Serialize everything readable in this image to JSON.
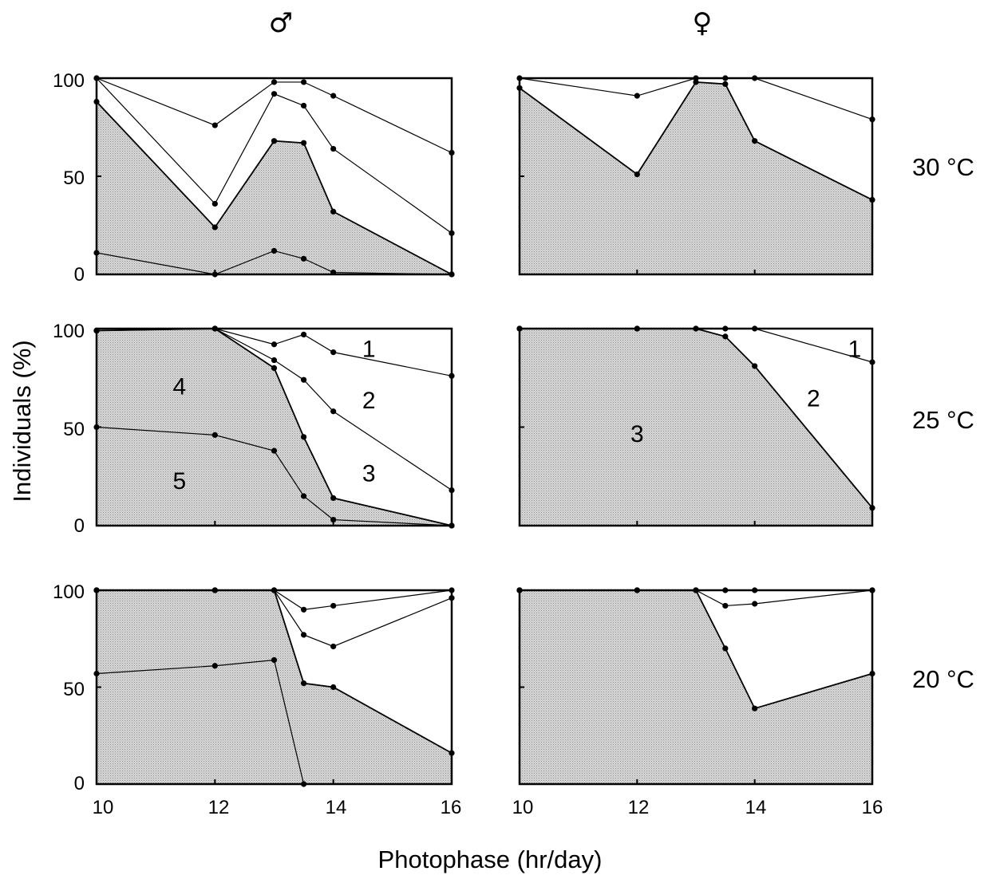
{
  "figure": {
    "ylabel": "Individuals (%)",
    "xlabel": "Photophase (hr/day)",
    "columns": [
      "♂",
      "♀"
    ],
    "rows": [
      "30 °C",
      "25 °C",
      "20 °C"
    ],
    "x_ticks": [
      "10",
      "12",
      "14",
      "16"
    ],
    "y_ticks": [
      "100",
      "50",
      "0"
    ],
    "fill_color": "#d4d4d4"
  },
  "chart_data": [
    {
      "type": "area",
      "column": "♂",
      "row": "30 °C",
      "xlim": [
        10,
        16
      ],
      "ylim": [
        0,
        100
      ],
      "lines": [
        {
          "x": [
            10,
            12,
            13,
            13.5,
            14,
            16
          ],
          "y": [
            100,
            76,
            98,
            98,
            91,
            62
          ]
        },
        {
          "x": [
            10,
            12,
            13,
            13.5,
            14,
            16
          ],
          "y": [
            100,
            36,
            92,
            86,
            64,
            21
          ]
        },
        {
          "x": [
            10,
            12,
            13,
            13.5,
            14,
            16
          ],
          "y": [
            88,
            24,
            68,
            67,
            32,
            0
          ],
          "shade": true
        },
        {
          "x": [
            10,
            12,
            13,
            13.5,
            14,
            16
          ],
          "y": [
            11,
            0,
            12,
            8,
            1,
            0
          ]
        }
      ],
      "labels": []
    },
    {
      "type": "area",
      "column": "♀",
      "row": "30 °C",
      "xlim": [
        10,
        16
      ],
      "ylim": [
        0,
        100
      ],
      "lines": [
        {
          "x": [
            10,
            12,
            13,
            13.5,
            14,
            16
          ],
          "y": [
            100,
            91,
            100,
            100,
            100,
            79
          ]
        },
        {
          "x": [
            10,
            12,
            13,
            13.5,
            14,
            16
          ],
          "y": [
            95,
            51,
            98,
            97,
            68,
            38
          ],
          "shade": true
        }
      ],
      "labels": []
    },
    {
      "type": "area",
      "column": "♂",
      "row": "25 °C",
      "xlim": [
        10,
        16
      ],
      "ylim": [
        0,
        100
      ],
      "lines": [
        {
          "x": [
            10,
            12,
            13,
            13.5,
            14,
            16
          ],
          "y": [
            99,
            100,
            92,
            97,
            88,
            76
          ]
        },
        {
          "x": [
            10,
            12,
            13,
            13.5,
            14,
            16
          ],
          "y": [
            99,
            100,
            84,
            74,
            58,
            18
          ]
        },
        {
          "x": [
            10,
            12,
            13,
            13.5,
            14,
            16
          ],
          "y": [
            99,
            100,
            80,
            45,
            14,
            0
          ],
          "shade": true
        },
        {
          "x": [
            10,
            12,
            13,
            13.5,
            14,
            16
          ],
          "y": [
            50,
            46,
            38,
            15,
            3,
            0
          ]
        }
      ],
      "labels": [
        {
          "text": "1",
          "x": 14.6,
          "y": 90
        },
        {
          "text": "2",
          "x": 14.6,
          "y": 64
        },
        {
          "text": "3",
          "x": 14.6,
          "y": 27
        },
        {
          "text": "4",
          "x": 11.4,
          "y": 71
        },
        {
          "text": "5",
          "x": 11.4,
          "y": 23
        }
      ]
    },
    {
      "type": "area",
      "column": "♀",
      "row": "25 °C",
      "xlim": [
        10,
        16
      ],
      "ylim": [
        0,
        100
      ],
      "lines": [
        {
          "x": [
            10,
            12,
            13,
            13.5,
            14,
            16
          ],
          "y": [
            100,
            100,
            100,
            100,
            100,
            83
          ]
        },
        {
          "x": [
            10,
            12,
            13,
            13.5,
            14,
            16
          ],
          "y": [
            100,
            100,
            100,
            96,
            81,
            9
          ],
          "shade": true
        }
      ],
      "labels": [
        {
          "text": "1",
          "x": 15.7,
          "y": 90
        },
        {
          "text": "2",
          "x": 15.0,
          "y": 65
        },
        {
          "text": "3",
          "x": 12.0,
          "y": 47
        }
      ]
    },
    {
      "type": "area",
      "column": "♂",
      "row": "20 °C",
      "xlim": [
        10,
        16
      ],
      "ylim": [
        0,
        100
      ],
      "lines": [
        {
          "x": [
            10,
            12,
            13,
            13.5,
            14,
            16
          ],
          "y": [
            100,
            100,
            100,
            90,
            92,
            100
          ]
        },
        {
          "x": [
            10,
            12,
            13,
            13.5,
            14,
            16
          ],
          "y": [
            100,
            100,
            100,
            77,
            71,
            96
          ]
        },
        {
          "x": [
            10,
            12,
            13,
            13.5,
            14,
            16
          ],
          "y": [
            100,
            100,
            100,
            52,
            50,
            16
          ],
          "shade": true
        },
        {
          "x": [
            10,
            12,
            13,
            13.5
          ],
          "y": [
            57,
            61,
            64,
            0
          ]
        }
      ],
      "labels": []
    },
    {
      "type": "area",
      "column": "♀",
      "row": "20 °C",
      "xlim": [
        10,
        16
      ],
      "ylim": [
        0,
        100
      ],
      "lines": [
        {
          "x": [
            10,
            12,
            13,
            13.5,
            14,
            16
          ],
          "y": [
            100,
            100,
            100,
            100,
            100,
            100
          ]
        },
        {
          "x": [
            10,
            12,
            13,
            13.5,
            14,
            16
          ],
          "y": [
            100,
            100,
            100,
            92,
            93,
            100
          ]
        },
        {
          "x": [
            10,
            12,
            13,
            13.5,
            14,
            16
          ],
          "y": [
            100,
            100,
            100,
            70,
            39,
            57
          ],
          "shade": true
        }
      ],
      "labels": []
    }
  ]
}
